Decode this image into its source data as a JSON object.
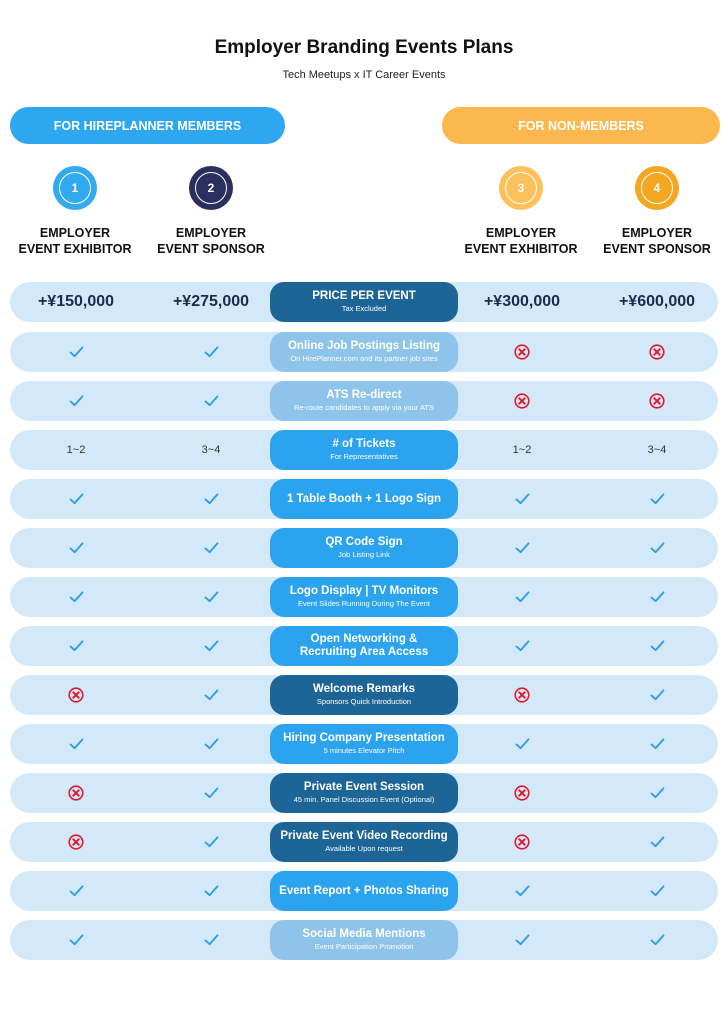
{
  "title": "Employer Branding Events Plans",
  "subtitle": "Tech Meetups x IT Career Events",
  "groups": {
    "members": "FOR HIREPLANNER MEMBERS",
    "non_members": "FOR NON-MEMBERS"
  },
  "colors": {
    "members_blue": "#2fa6f0",
    "non_members_orange": "#fbb84e",
    "navy": "#2b2f5e",
    "orange": "#f5a623",
    "row_bg": "#d3e9fa",
    "dark_feature": "#1d6596",
    "bright_feature": "#2ba3ef",
    "light_feature": "#8fc4ea",
    "check": "#2d9ce6",
    "cross": "#e2182c"
  },
  "plans": [
    {
      "number": "1",
      "line1": "EMPLOYER",
      "line2": "EVENT EXHIBITOR",
      "color": "#33aaf0",
      "price": "+¥150,000"
    },
    {
      "number": "2",
      "line1": "EMPLOYER",
      "line2": "EVENT SPONSOR",
      "color": "#2b2f5e",
      "price": "+¥275,000"
    },
    {
      "number": "3",
      "line1": "EMPLOYER",
      "line2": "EVENT EXHIBITOR",
      "color": "#fcc15a",
      "price": "+¥300,000"
    },
    {
      "number": "4",
      "line1": "EMPLOYER",
      "line2": "EVENT SPONSOR",
      "color": "#f5a623",
      "price": "+¥600,000"
    }
  ],
  "price_row": {
    "name": "PRICE PER EVENT",
    "sub": "Tax Excluded"
  },
  "features": [
    {
      "name": "Online Job Postings Listing",
      "sub": "On HirePlanner.com and its partner job sites",
      "style": "light",
      "values": [
        "check",
        "check",
        "cross",
        "cross"
      ]
    },
    {
      "name": "ATS Re-direct",
      "sub": "Re-route candidates to apply via your ATS",
      "style": "light",
      "values": [
        "check",
        "check",
        "cross",
        "cross"
      ]
    },
    {
      "name": "# of Tickets",
      "sub": "For Representatives",
      "style": "bright",
      "values": [
        "1~2",
        "3~4",
        "1~2",
        "3~4"
      ]
    },
    {
      "name": "1 Table Booth + 1 Logo Sign",
      "sub": "",
      "style": "bright",
      "values": [
        "check",
        "check",
        "check",
        "check"
      ]
    },
    {
      "name": "QR Code Sign",
      "sub": "Job Listing Link",
      "style": "bright",
      "values": [
        "check",
        "check",
        "check",
        "check"
      ]
    },
    {
      "name": "Logo Display | TV Monitors",
      "sub": "Event Slides Running During The Event",
      "style": "bright",
      "values": [
        "check",
        "check",
        "check",
        "check"
      ]
    },
    {
      "name": "Open Networking &\nRecruiting Area Access",
      "sub": "",
      "style": "bright",
      "values": [
        "check",
        "check",
        "check",
        "check"
      ]
    },
    {
      "name": "Welcome Remarks",
      "sub": "Sponsors Quick Introduction",
      "style": "dark",
      "values": [
        "cross",
        "check",
        "cross",
        "check"
      ]
    },
    {
      "name": "Hiring Company Presentation",
      "sub": "5 minutes Elevator Pitch",
      "style": "bright",
      "values": [
        "check",
        "check",
        "check",
        "check"
      ]
    },
    {
      "name": "Private Event Session",
      "sub": "45 min. Panel Discussion Event (Optional)",
      "style": "dark",
      "values": [
        "cross",
        "check",
        "cross",
        "check"
      ]
    },
    {
      "name": "Private Event Video Recording",
      "sub": "Available Upon request",
      "style": "dark",
      "values": [
        "cross",
        "check",
        "cross",
        "check"
      ]
    },
    {
      "name": "Event Report + Photos Sharing",
      "sub": "",
      "style": "bright",
      "values": [
        "check",
        "check",
        "check",
        "check"
      ]
    },
    {
      "name": "Social Media Mentions",
      "sub": "Event Participation Promotion",
      "style": "light",
      "values": [
        "check",
        "check",
        "check",
        "check"
      ]
    }
  ]
}
